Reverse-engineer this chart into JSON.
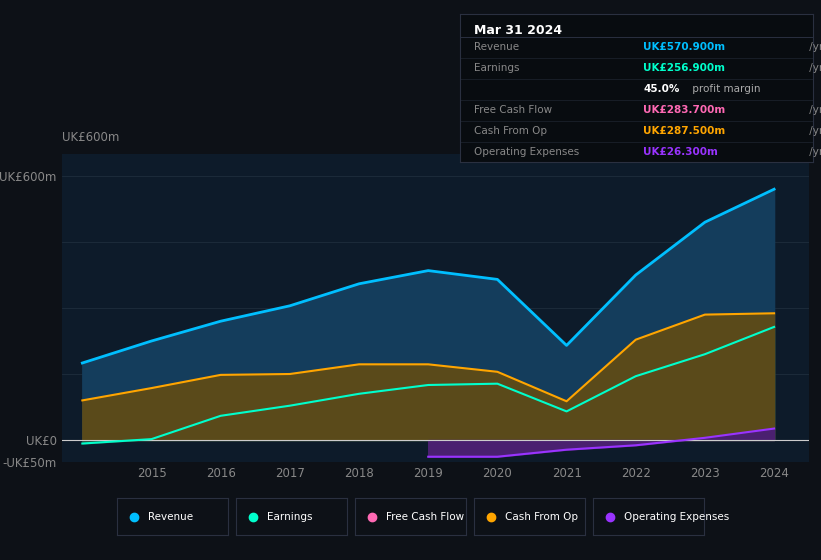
{
  "background_color": "#0d1117",
  "plot_bg_color": "#0d1b2a",
  "years": [
    2014,
    2015,
    2016,
    2017,
    2018,
    2019,
    2020,
    2021,
    2022,
    2023,
    2024
  ],
  "revenue": [
    175,
    225,
    270,
    305,
    355,
    385,
    365,
    215,
    375,
    495,
    570
  ],
  "earnings": [
    -8,
    2,
    55,
    78,
    105,
    125,
    128,
    65,
    145,
    195,
    257
  ],
  "cash_from_op": [
    90,
    118,
    148,
    150,
    172,
    172,
    155,
    88,
    228,
    285,
    288
  ],
  "operating_expenses": [
    null,
    null,
    null,
    null,
    null,
    -38,
    -38,
    -22,
    -12,
    5,
    26
  ],
  "revenue_color": "#00bfff",
  "earnings_color": "#00ffcc",
  "free_cash_flow_color": "#ff69b4",
  "cash_from_op_color": "#ffa500",
  "operating_expenses_color": "#9933ff",
  "revenue_fill": "#143d5c",
  "earnings_fill": "#1e5248",
  "cash_from_op_fill": "#5a4a1a",
  "operating_expenses_fill": "#4a2070",
  "ylim_min": -50,
  "ylim_max": 650,
  "x_tick_years": [
    2015,
    2016,
    2017,
    2018,
    2019,
    2020,
    2021,
    2022,
    2023,
    2024
  ],
  "tooltip_title": "Mar 31 2024",
  "tooltip_items": [
    {
      "label": "Revenue",
      "value": "UK£570.900m",
      "color": "#00bfff"
    },
    {
      "label": "Earnings",
      "value": "UK£256.900m",
      "color": "#00ffcc"
    },
    {
      "label": "",
      "value": "45.0% profit margin",
      "color": "#ffffff"
    },
    {
      "label": "Free Cash Flow",
      "value": "UK£283.700m",
      "color": "#ff69b4"
    },
    {
      "label": "Cash From Op",
      "value": "UK£287.500m",
      "color": "#ffa500"
    },
    {
      "label": "Operating Expenses",
      "value": "UK£26.300m",
      "color": "#9933ff"
    }
  ],
  "legend_items": [
    {
      "label": "Revenue",
      "color": "#00bfff"
    },
    {
      "label": "Earnings",
      "color": "#00ffcc"
    },
    {
      "label": "Free Cash Flow",
      "color": "#ff69b4"
    },
    {
      "label": "Cash From Op",
      "color": "#ffa500"
    },
    {
      "label": "Operating Expenses",
      "color": "#9933ff"
    }
  ]
}
